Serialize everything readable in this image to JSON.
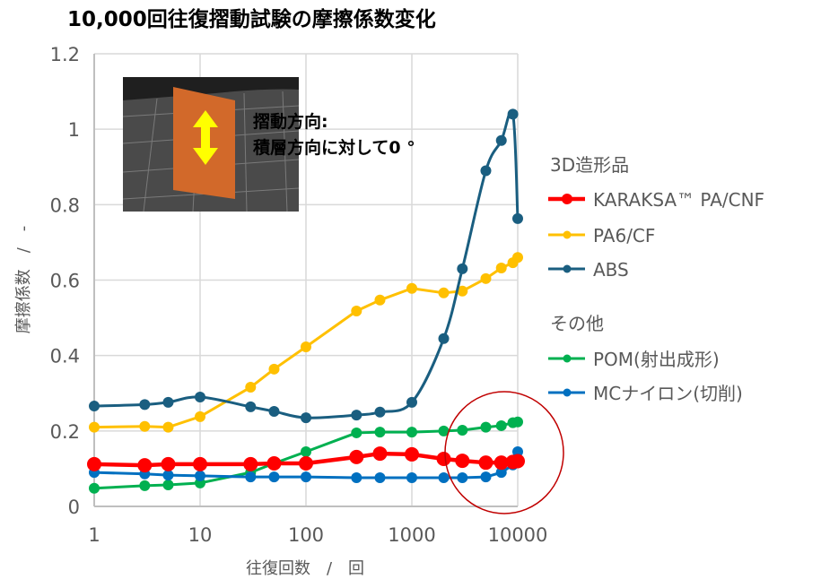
{
  "chart_data": {
    "type": "line",
    "title": "10,000回往復摺動試験の摩擦係数変化",
    "xlabel": "往復回数　/　回",
    "ylabel": "摩擦係数　/　-",
    "xscale": "log",
    "xlim": [
      1,
      10000
    ],
    "ylim": [
      0,
      1.2
    ],
    "grid": true,
    "x_ticks": [
      "1",
      "10",
      "100",
      "1000",
      "10000"
    ],
    "x_tick_values": [
      1,
      10,
      100,
      1000,
      10000
    ],
    "y_ticks": [
      "0",
      "0.2",
      "0.4",
      "0.6",
      "0.8",
      "1",
      "1.2"
    ],
    "y_tick_values": [
      0,
      0.2,
      0.4,
      0.6,
      0.8,
      1.0,
      1.2
    ],
    "x": [
      1,
      3,
      5,
      10,
      30,
      50,
      100,
      300,
      500,
      1000,
      2000,
      3000,
      5000,
      7000,
      9000,
      10000
    ],
    "legend_groups": [
      "3D造形品",
      "その他"
    ],
    "legend_placement": "right",
    "series": [
      {
        "name": "KARAKSA™ PA/CNF",
        "group": 0,
        "color": "#FF0000",
        "bold": true,
        "values": [
          0.112,
          0.109,
          0.112,
          0.112,
          0.112,
          0.114,
          0.114,
          0.131,
          0.14,
          0.138,
          0.126,
          0.121,
          0.116,
          0.116,
          0.118,
          0.12
        ]
      },
      {
        "name": "PA6/CF",
        "group": 0,
        "color": "#FFC000",
        "values": [
          0.21,
          0.212,
          0.21,
          0.238,
          0.316,
          0.364,
          0.423,
          0.518,
          0.547,
          0.578,
          0.566,
          0.571,
          0.604,
          0.632,
          0.646,
          0.66
        ]
      },
      {
        "name": "ABS",
        "group": 0,
        "color": "#1A5E80",
        "smooth": true,
        "values": [
          0.266,
          0.27,
          0.276,
          0.29,
          0.264,
          0.252,
          0.235,
          0.242,
          0.25,
          0.276,
          0.445,
          0.63,
          0.89,
          0.97,
          1.04,
          0.763
        ]
      },
      {
        "name": "POM(射出成形)",
        "group": 1,
        "color": "#00B050",
        "values": [
          0.048,
          0.055,
          0.057,
          0.062,
          0.09,
          0.114,
          0.145,
          0.195,
          0.197,
          0.197,
          0.2,
          0.202,
          0.21,
          0.214,
          0.222,
          0.224
        ]
      },
      {
        "name": "MCナイロン(切削)",
        "group": 1,
        "color": "#0070C0",
        "values": [
          0.09,
          0.086,
          0.083,
          0.081,
          0.078,
          0.078,
          0.078,
          0.076,
          0.076,
          0.076,
          0.076,
          0.076,
          0.078,
          0.09,
          0.11,
          0.145
        ]
      }
    ],
    "annotations": {
      "inset_text": [
        "摺動方向:",
        "積層方向に対して0 °"
      ],
      "highlight_circle": "red ellipse around 2000–10000 cycles"
    },
    "colors": {
      "highlight": "#C00000",
      "grid": "#D9D9D9",
      "text": "#595959"
    }
  }
}
